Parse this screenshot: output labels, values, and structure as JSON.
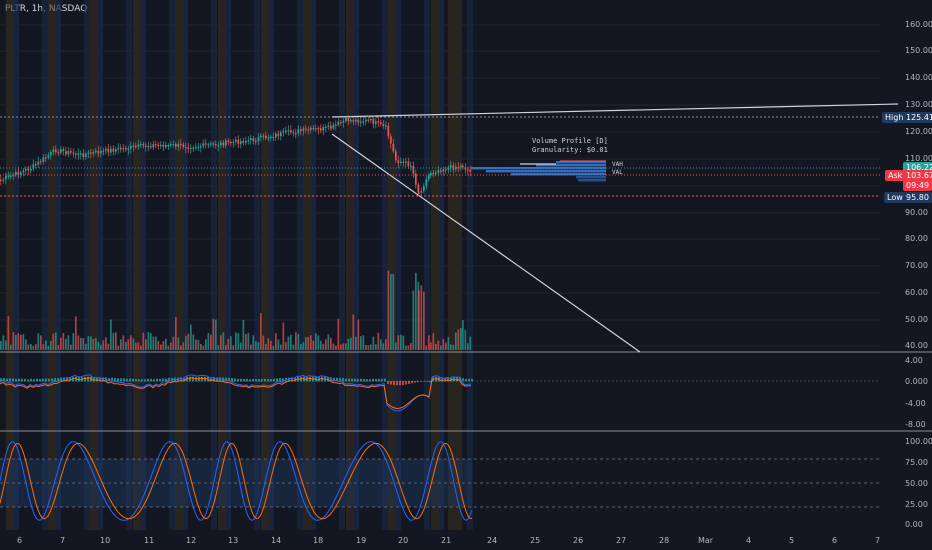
{
  "header": {
    "symbol": "PLTR, 1h, NASDAQ"
  },
  "price_axis": [
    "160.00",
    "150.00",
    "140.00",
    "130.00",
    "120.00",
    "110.00",
    "90.00",
    "80.00",
    "70.00",
    "60.00",
    "50.00",
    "40.00"
  ],
  "macd_axis": [
    "4.00",
    "0.000",
    "-4.00",
    "-8.00"
  ],
  "stoch_axis": [
    "100.00",
    "75.00",
    "50.00",
    "25.00",
    "0.00"
  ],
  "date_axis": [
    "6",
    "7",
    "10",
    "11",
    "12",
    "13",
    "14",
    "18",
    "19",
    "20",
    "21",
    "24",
    "25",
    "26",
    "27",
    "28",
    "Mar",
    "4",
    "5",
    "6",
    "7"
  ],
  "markers": {
    "high_label": "High",
    "high_value": "125.41",
    "low_label": "Low",
    "low_value": "95.80",
    "last_price": "106.22",
    "ask_label": "Ask",
    "ask_value": "103.67",
    "countdown": "09:49"
  },
  "volume_profile": {
    "title": "Volume Profile [D]",
    "granularity": "Granularity: $0.01",
    "vah_label": "VAH",
    "val_label": "VAL"
  },
  "colors": {
    "background": "#131722",
    "up": "#26a69a",
    "down": "#ef5350",
    "high_tag": "#1e3a5f",
    "ask_tag": "#f23645",
    "macd_line": "#2962ff",
    "signal_line": "#ff6d00",
    "stoch_k": "#2962ff",
    "stoch_d": "#ff6d00",
    "stoch_band": "#1e3a5f"
  }
}
